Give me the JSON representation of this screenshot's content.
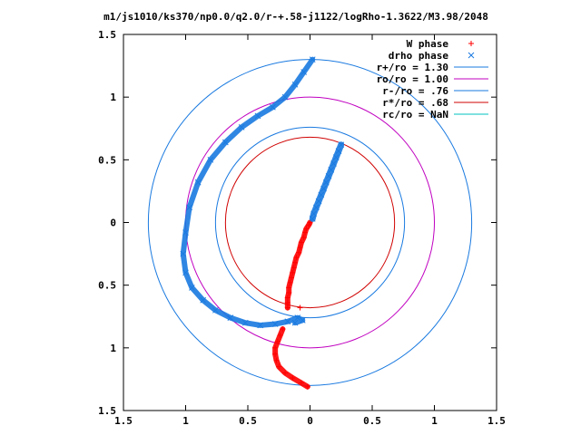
{
  "chart_data": {
    "type": "scatter",
    "title": "m1/js1010/ks370/np0.0/q2.0/r-+.58-j1122/logRho-1.3622/M3.98/2048",
    "xlim": [
      -1.5,
      1.5
    ],
    "ylim": [
      -1.5,
      1.5
    ],
    "x_ticks": [
      -1.5,
      -1,
      -0.5,
      0,
      0.5,
      1,
      1.5
    ],
    "y_ticks": [
      -1.5,
      -1,
      -0.5,
      0,
      0.5,
      1,
      1.5
    ],
    "x_tick_labels": [
      "1.5",
      "1",
      "0.5",
      "0",
      "0.5",
      "1",
      "1.5"
    ],
    "y_tick_labels": [
      "1.5",
      "1",
      "0.5",
      "0",
      "0.5",
      "1",
      "1.5"
    ],
    "grid": false,
    "legend_position": "top-right",
    "series": [
      {
        "name": "W phase",
        "kind": "points",
        "marker": "+",
        "color": "#ff0000",
        "x": [
          -0.18,
          -0.18,
          -0.18,
          -0.17,
          -0.17,
          -0.16,
          -0.15,
          -0.14,
          -0.13,
          -0.12,
          -0.11,
          -0.09,
          -0.08,
          -0.07,
          -0.05,
          -0.04,
          -0.03,
          -0.01,
          0.0,
          -0.22,
          -0.24,
          -0.26,
          -0.28,
          -0.28,
          -0.27,
          -0.25,
          -0.2,
          -0.14,
          -0.07,
          -0.02,
          -0.08
        ],
        "y": [
          -0.68,
          -0.64,
          -0.6,
          -0.56,
          -0.52,
          -0.48,
          -0.44,
          -0.4,
          -0.36,
          -0.32,
          -0.28,
          -0.24,
          -0.2,
          -0.16,
          -0.12,
          -0.08,
          -0.05,
          -0.02,
          0.0,
          -0.85,
          -0.9,
          -0.95,
          -1.0,
          -1.05,
          -1.1,
          -1.15,
          -1.2,
          -1.24,
          -1.28,
          -1.31,
          -0.68
        ]
      },
      {
        "name": "drho phase",
        "kind": "points",
        "marker": "x",
        "color": "#1a7ae0",
        "x": [
          0.25,
          0.23,
          0.21,
          0.19,
          0.17,
          0.15,
          0.13,
          0.11,
          0.09,
          0.07,
          0.05,
          0.03,
          0.02,
          0.02,
          -0.05,
          -0.12,
          -0.2,
          -0.3,
          -0.42,
          -0.55,
          -0.68,
          -0.8,
          -0.9,
          -0.97,
          -1.0,
          -1.02,
          -1.0,
          -0.95,
          -0.86,
          -0.76,
          -0.64,
          -0.52,
          -0.4,
          -0.28,
          -0.18,
          -0.1,
          -0.06,
          -0.12
        ],
        "y": [
          0.62,
          0.57,
          0.52,
          0.47,
          0.42,
          0.37,
          0.32,
          0.27,
          0.22,
          0.17,
          0.12,
          0.07,
          0.03,
          1.3,
          1.2,
          1.1,
          1.0,
          0.92,
          0.85,
          0.76,
          0.64,
          0.5,
          0.32,
          0.12,
          -0.08,
          -0.25,
          -0.4,
          -0.52,
          -0.62,
          -0.7,
          -0.76,
          -0.8,
          -0.82,
          -0.81,
          -0.79,
          -0.76,
          -0.78,
          -0.8
        ]
      },
      {
        "name": "r+/ro = 1.30",
        "kind": "circle",
        "radius": 1.3,
        "color": "#1a7ae0"
      },
      {
        "name": "ro/ro = 1.00",
        "kind": "circle",
        "radius": 1.0,
        "color": "#c000c0"
      },
      {
        "name": "r-/ro = .76",
        "kind": "circle",
        "radius": 0.76,
        "color": "#1a7ae0"
      },
      {
        "name": "r*/ro = .68",
        "kind": "circle",
        "radius": 0.68,
        "color": "#d00000"
      },
      {
        "name": "rc/ro = NaN",
        "kind": "circle",
        "radius": null,
        "color": "#00c0c0"
      }
    ]
  }
}
